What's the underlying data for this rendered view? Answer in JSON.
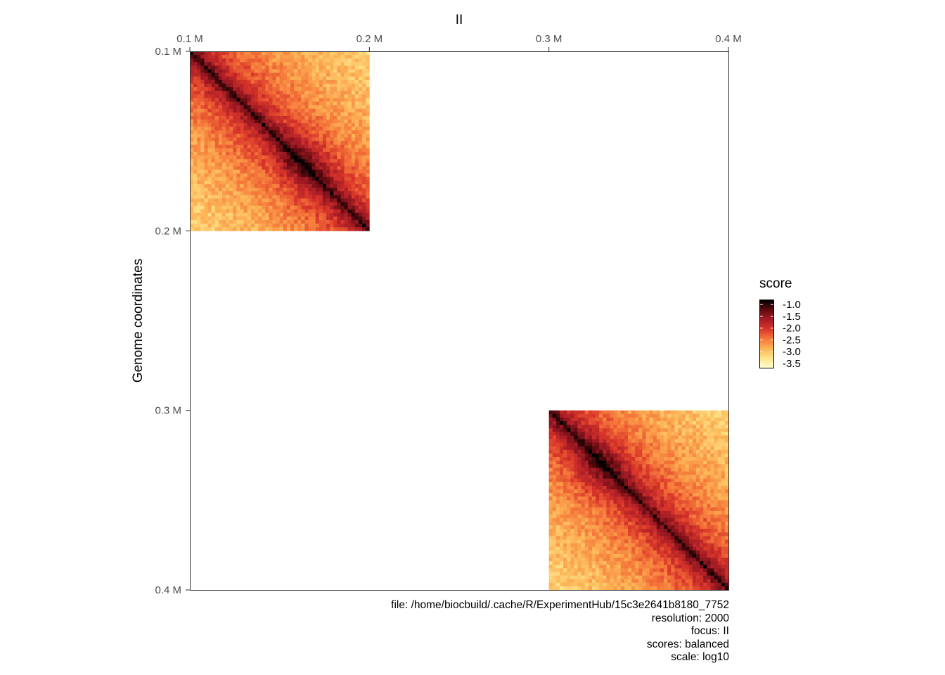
{
  "chart_data": {
    "type": "heatmap",
    "title": "II",
    "ylabel": "Genome coordinates",
    "xlabel": "",
    "x_ticks": [
      "0.1 M",
      "0.2 M",
      "0.3 M",
      "0.4 M"
    ],
    "y_ticks": [
      "0.1 M",
      "0.2 M",
      "0.3 M",
      "0.4 M"
    ],
    "x_range": [
      100000,
      400000
    ],
    "y_range": [
      100000,
      400000
    ],
    "resolution": 2000,
    "blocks": [
      {
        "start": 100000,
        "end": 200000,
        "hotspot": 162000
      },
      {
        "start": 300000,
        "end": 400000,
        "hotspot": 328000
      }
    ],
    "legend": {
      "title": "score",
      "labels": [
        "-1.0",
        "-1.5",
        "-2.0",
        "-2.5",
        "-3.0",
        "-3.5"
      ],
      "range": [
        -3.7,
        -0.8
      ]
    },
    "colors": [
      "#fffdd0",
      "#ffe48a",
      "#fdb456",
      "#f5783a",
      "#d9362a",
      "#a61c26",
      "#5a0a0f",
      "#000000"
    ]
  },
  "caption": {
    "file": "file: /home/biocbuild/.cache/R/ExperimentHub/15c3e2641b8180_7752",
    "resolution": "resolution: 2000",
    "focus": "focus: II",
    "scores": "scores: balanced",
    "scale": "scale: log10"
  }
}
